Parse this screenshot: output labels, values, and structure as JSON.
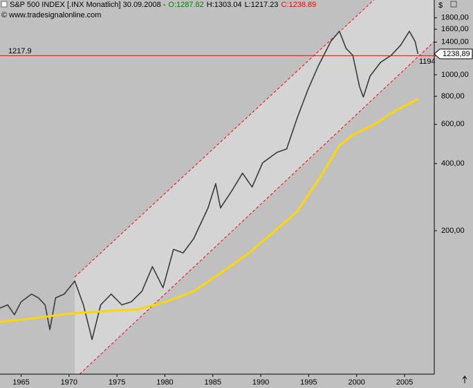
{
  "chart_data": {
    "type": "line",
    "title": "S&P 500 INDEX [.INX  Monatlich] 30.09.2008 -",
    "ohlc": [
      "O:1287.82",
      "H:1303.04",
      "L:1217.23",
      "C:1238.89"
    ],
    "ohlc_colors": [
      "#008000",
      "#000000",
      "#000000",
      "#ff0000"
    ],
    "source": "© www.tradesignalonline.com",
    "y_unit": "$",
    "log_scale": true,
    "grid": false,
    "xlim": [
      1962.8,
      2008.1
    ],
    "ylim": [
      45.5,
      2163
    ],
    "xticks": [
      1965,
      1970,
      1975,
      1980,
      1985,
      1990,
      1995,
      2000,
      2005
    ],
    "yticks": [
      {
        "value": 200,
        "label": "200,00"
      },
      {
        "value": 400,
        "label": "400,00"
      },
      {
        "value": 600,
        "label": "600,00"
      },
      {
        "value": 800,
        "label": "800,00"
      },
      {
        "value": 1000,
        "label": "1000,00"
      },
      {
        "value": 1400,
        "label": "1400,00"
      },
      {
        "value": 1600,
        "label": "1600,00"
      },
      {
        "value": 1800,
        "label": "1800,00"
      }
    ],
    "series": [
      {
        "color": "#3a3a3a",
        "x": [
          1962.8,
          1963.6,
          1964.3,
          1965.0,
          1966.1,
          1966.8,
          1967.5,
          1968.0,
          1968.6,
          1969.5,
          1970.6,
          1971.5,
          1972.4,
          1973.3,
          1974.4,
          1975.5,
          1976.5,
          1977.6,
          1978.7,
          1979.8,
          1980.9,
          1981.9,
          1983.0,
          1984.5,
          1985.3,
          1985.8,
          1987.0,
          1988.1,
          1989.1,
          1990.2,
          1991.7,
          1992.7,
          1993.8,
          1994.9,
          1996.0,
          1997.3,
          1998.2,
          1998.9,
          1999.6,
          2000.3,
          2000.7,
          2001.4,
          2002.5,
          2003.6,
          2004.6,
          2005.5,
          2006.1,
          2006.4
        ],
        "values": [
          90,
          93,
          84,
          96,
          104,
          100,
          93,
          72,
          100,
          104,
          119,
          93,
          65,
          93,
          104,
          93,
          96,
          107,
          138,
          111,
          165,
          159,
          184,
          253,
          325,
          253,
          303,
          362,
          314,
          403,
          449,
          465,
          641,
          853,
          1096,
          1409,
          1567,
          1312,
          1222,
          885,
          794,
          986,
          1137,
          1222,
          1358,
          1567,
          1409,
          1239
        ]
      },
      {
        "color": "#ffd700",
        "x": [
          1962.8,
          1966.4,
          1970.0,
          1973.6,
          1977.3,
          1980.1,
          1983.0,
          1985.9,
          1988.8,
          1991.7,
          1993.8,
          1996.0,
          1998.2,
          1999.6,
          2001.8,
          2004.0,
          2006.4
        ],
        "values": [
          78,
          81,
          85,
          87,
          89,
          96,
          107,
          130,
          159,
          204,
          244,
          337,
          482,
          537,
          597,
          689,
          778
        ]
      }
    ],
    "channel": {
      "color": "#ff0000",
      "upper_x": [
        1970.6,
        2001.8
      ],
      "upper": [
        124,
        2163
      ],
      "lower_x": [
        1971.1,
        2008.1
      ],
      "lower": [
        45.5,
        1409
      ],
      "lower_label": "1194"
    },
    "hline": 1217.9,
    "last_price": {
      "value": 1238.89,
      "label": "1238,89"
    }
  }
}
